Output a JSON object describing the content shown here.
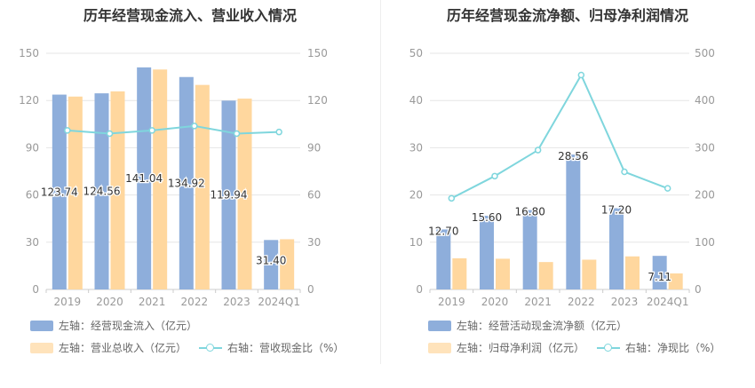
{
  "colors": {
    "bar_primary": "#8eaedb",
    "bar_secondary": "#ffd79e",
    "line": "#7fd6dd",
    "axis_text": "#999999",
    "grid": "#e6e6e6"
  },
  "chart_data": [
    {
      "type": "bar",
      "title": "历年经营现金流入、营业收入情况",
      "categories": [
        "2019",
        "2020",
        "2021",
        "2022",
        "2023",
        "2024Q1"
      ],
      "y_left": {
        "ticks": [
          "0",
          "30",
          "60",
          "90",
          "120",
          "150"
        ],
        "min": 0,
        "max": 150
      },
      "y_right": {
        "ticks": [
          "0",
          "30",
          "60",
          "90",
          "120",
          "150"
        ],
        "min": 0,
        "max": 150
      },
      "series": [
        {
          "name": "左轴：经营现金流入（亿元）",
          "axis": "left",
          "kind": "bar",
          "values": [
            123.74,
            124.56,
            141.04,
            134.92,
            119.94,
            31.4
          ],
          "labels": [
            "123.74",
            "124.56",
            "141.04",
            "134.92",
            "119.94",
            "31.40"
          ]
        },
        {
          "name": "左轴：营业总收入（亿元）",
          "axis": "left",
          "kind": "bar",
          "values": [
            122.5,
            125.8,
            139.7,
            129.9,
            121.2,
            31.9
          ]
        },
        {
          "name": "右轴：营收现金比（%）",
          "axis": "right",
          "kind": "line",
          "values": [
            101.0,
            99.0,
            101.0,
            103.8,
            99.0,
            100.0
          ]
        }
      ],
      "legend": {
        "position": "bottom"
      }
    },
    {
      "type": "bar",
      "title": "历年经营现金流净额、归母净利润情况",
      "categories": [
        "2019",
        "2020",
        "2021",
        "2022",
        "2023",
        "2024Q1"
      ],
      "y_left": {
        "ticks": [
          "0",
          "10",
          "20",
          "30",
          "40",
          "50"
        ],
        "min": 0,
        "max": 50
      },
      "y_right": {
        "ticks": [
          "0",
          "100",
          "200",
          "300",
          "400",
          "500"
        ],
        "min": 0,
        "max": 500
      },
      "series": [
        {
          "name": "左轴：经营活动现金流净额（亿元）",
          "axis": "left",
          "kind": "bar",
          "values": [
            12.7,
            15.6,
            16.8,
            28.56,
            17.2,
            7.11
          ],
          "labels": [
            "12.70",
            "15.60",
            "16.80",
            "28.56",
            "17.20",
            "7.11"
          ]
        },
        {
          "name": "左轴：归母净利润（亿元）",
          "axis": "left",
          "kind": "bar",
          "values": [
            6.6,
            6.5,
            5.8,
            6.3,
            7.0,
            3.4
          ]
        },
        {
          "name": "右轴：净现比（%）",
          "axis": "right",
          "kind": "line",
          "values": [
            193,
            240,
            295,
            454,
            249,
            214
          ]
        }
      ],
      "legend": {
        "position": "bottom"
      }
    }
  ]
}
